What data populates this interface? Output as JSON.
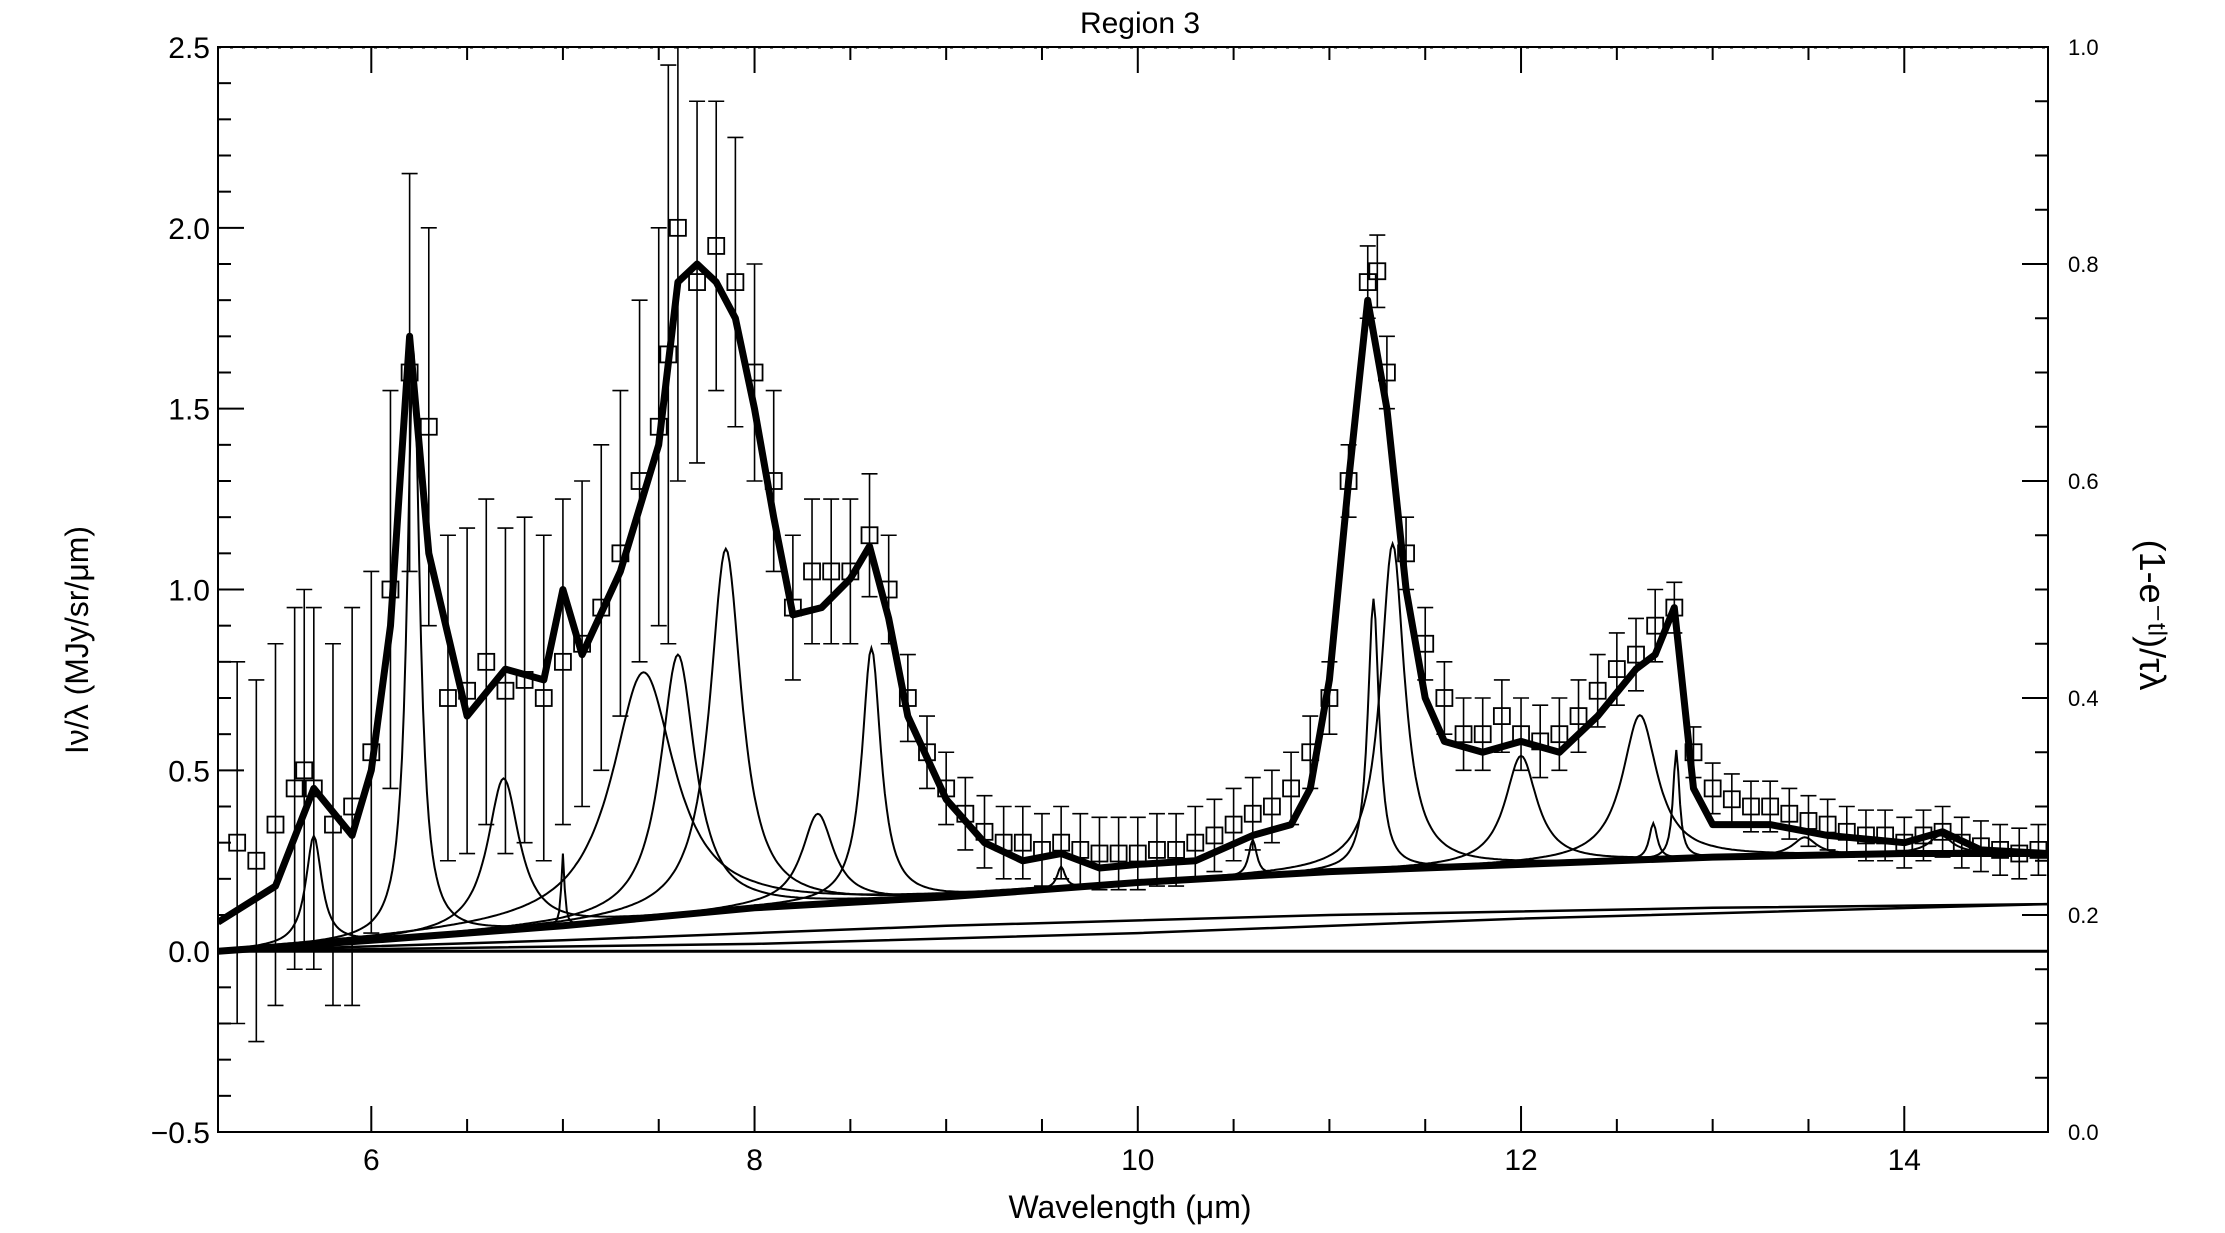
{
  "chart_data": {
    "type": "line",
    "title": "Region 3",
    "xlabel": "Wavelength (μm)",
    "ylabel": "Iν/λ (MJy/sr/μm)",
    "y2label": "(1-e⁻ᵗˡ)/τλ",
    "xlim": [
      5.2,
      14.75
    ],
    "ylim": [
      -0.5,
      2.5
    ],
    "y2lim": [
      0.0,
      1.0
    ],
    "grid": false,
    "xticks": [
      "6",
      "8",
      "10",
      "12",
      "14"
    ],
    "yticks": [
      "−0.5",
      "0.0",
      "0.5",
      "1.0",
      "1.5",
      "2.0",
      "2.5"
    ],
    "y2ticks": [
      "0.0",
      "0.2",
      "0.4",
      "0.6",
      "0.8",
      "1.0"
    ],
    "series": [
      {
        "name": "",
        "style": "data-with-errors",
        "x": [
          5.3,
          5.4,
          5.5,
          5.6,
          5.65,
          5.7,
          5.8,
          5.9,
          6.0,
          6.1,
          6.2,
          6.3,
          6.4,
          6.5,
          6.6,
          6.7,
          6.8,
          6.9,
          7.0,
          7.1,
          7.2,
          7.3,
          7.4,
          7.5,
          7.55,
          7.6,
          7.7,
          7.8,
          7.9,
          8.0,
          8.1,
          8.2,
          8.3,
          8.4,
          8.5,
          8.6,
          8.7,
          8.8,
          8.9,
          9.0,
          9.1,
          9.2,
          9.3,
          9.4,
          9.5,
          9.6,
          9.7,
          9.8,
          9.9,
          10.0,
          10.1,
          10.2,
          10.3,
          10.4,
          10.5,
          10.6,
          10.7,
          10.8,
          10.9,
          11.0,
          11.1,
          11.2,
          11.25,
          11.3,
          11.4,
          11.5,
          11.6,
          11.7,
          11.8,
          11.9,
          12.0,
          12.1,
          12.2,
          12.3,
          12.4,
          12.5,
          12.6,
          12.7,
          12.8,
          12.9,
          13.0,
          13.1,
          13.2,
          13.3,
          13.4,
          13.5,
          13.6,
          13.7,
          13.8,
          13.9,
          14.0,
          14.1,
          14.2,
          14.3,
          14.4,
          14.5,
          14.6,
          14.7
        ],
        "y": [
          0.3,
          0.25,
          0.35,
          0.45,
          0.5,
          0.45,
          0.35,
          0.4,
          0.55,
          1.0,
          1.6,
          1.45,
          0.7,
          0.72,
          0.8,
          0.72,
          0.75,
          0.7,
          0.8,
          0.85,
          0.95,
          1.1,
          1.3,
          1.45,
          1.65,
          2.0,
          1.85,
          1.95,
          1.85,
          1.6,
          1.3,
          0.95,
          1.05,
          1.05,
          1.05,
          1.15,
          1.0,
          0.7,
          0.55,
          0.45,
          0.38,
          0.33,
          0.3,
          0.3,
          0.28,
          0.3,
          0.28,
          0.27,
          0.27,
          0.27,
          0.28,
          0.28,
          0.3,
          0.32,
          0.35,
          0.38,
          0.4,
          0.45,
          0.55,
          0.7,
          1.3,
          1.85,
          1.88,
          1.6,
          1.1,
          0.85,
          0.7,
          0.6,
          0.6,
          0.65,
          0.6,
          0.58,
          0.6,
          0.65,
          0.72,
          0.78,
          0.82,
          0.9,
          0.95,
          0.55,
          0.45,
          0.42,
          0.4,
          0.4,
          0.38,
          0.36,
          0.35,
          0.33,
          0.32,
          0.32,
          0.3,
          0.32,
          0.33,
          0.3,
          0.29,
          0.28,
          0.27,
          0.28
        ],
        "err": [
          0.5,
          0.5,
          0.5,
          0.5,
          0.5,
          0.5,
          0.5,
          0.55,
          0.5,
          0.55,
          0.55,
          0.55,
          0.45,
          0.45,
          0.45,
          0.45,
          0.45,
          0.45,
          0.45,
          0.45,
          0.45,
          0.45,
          0.5,
          0.55,
          0.8,
          0.7,
          0.5,
          0.4,
          0.4,
          0.3,
          0.25,
          0.2,
          0.2,
          0.2,
          0.2,
          0.17,
          0.15,
          0.12,
          0.1,
          0.1,
          0.1,
          0.1,
          0.1,
          0.1,
          0.1,
          0.1,
          0.1,
          0.1,
          0.1,
          0.1,
          0.1,
          0.1,
          0.1,
          0.1,
          0.1,
          0.1,
          0.1,
          0.1,
          0.1,
          0.1,
          0.1,
          0.1,
          0.1,
          0.1,
          0.1,
          0.1,
          0.1,
          0.1,
          0.1,
          0.1,
          0.1,
          0.1,
          0.1,
          0.1,
          0.1,
          0.1,
          0.1,
          0.1,
          0.07,
          0.07,
          0.07,
          0.07,
          0.07,
          0.07,
          0.07,
          0.07,
          0.07,
          0.07,
          0.07,
          0.07,
          0.07,
          0.07,
          0.07,
          0.07,
          0.07,
          0.07,
          0.07,
          0.07
        ]
      },
      {
        "name": "",
        "style": "total-fit",
        "x": [
          5.2,
          5.5,
          5.7,
          5.9,
          6.0,
          6.1,
          6.2,
          6.3,
          6.5,
          6.7,
          6.9,
          7.0,
          7.1,
          7.3,
          7.5,
          7.6,
          7.7,
          7.8,
          7.9,
          8.0,
          8.1,
          8.2,
          8.35,
          8.5,
          8.6,
          8.7,
          8.8,
          9.0,
          9.2,
          9.4,
          9.6,
          9.8,
          10.0,
          10.3,
          10.6,
          10.8,
          10.9,
          11.0,
          11.1,
          11.2,
          11.3,
          11.4,
          11.5,
          11.6,
          11.8,
          12.0,
          12.2,
          12.4,
          12.6,
          12.7,
          12.8,
          12.9,
          13.0,
          13.3,
          13.6,
          14.0,
          14.2,
          14.4,
          14.75
        ],
        "y": [
          0.08,
          0.18,
          0.45,
          0.32,
          0.5,
          0.9,
          1.7,
          1.1,
          0.65,
          0.78,
          0.75,
          1.0,
          0.82,
          1.05,
          1.4,
          1.85,
          1.9,
          1.85,
          1.75,
          1.5,
          1.2,
          0.93,
          0.95,
          1.03,
          1.12,
          0.92,
          0.65,
          0.42,
          0.3,
          0.25,
          0.27,
          0.23,
          0.24,
          0.25,
          0.32,
          0.35,
          0.45,
          0.75,
          1.3,
          1.8,
          1.5,
          1.0,
          0.7,
          0.58,
          0.55,
          0.58,
          0.55,
          0.65,
          0.78,
          0.82,
          0.95,
          0.45,
          0.35,
          0.35,
          0.32,
          0.3,
          0.33,
          0.28,
          0.27
        ]
      },
      {
        "name": "",
        "style": "continuum",
        "x": [
          5.2,
          6.0,
          7.0,
          8.0,
          9.0,
          10.0,
          11.0,
          12.0,
          13.0,
          14.0,
          14.75
        ],
        "y": [
          0.0,
          0.03,
          0.07,
          0.12,
          0.15,
          0.19,
          0.22,
          0.24,
          0.26,
          0.27,
          0.27
        ]
      },
      {
        "name": "",
        "style": "continuum-component",
        "x": [
          5.2,
          7.0,
          9.0,
          11.0,
          13.0,
          14.75
        ],
        "y": [
          0.0,
          0.03,
          0.07,
          0.1,
          0.12,
          0.13
        ]
      },
      {
        "name": "",
        "style": "continuum-component",
        "x": [
          5.2,
          8.0,
          10.0,
          12.0,
          14.75
        ],
        "y": [
          0.0,
          0.02,
          0.05,
          0.09,
          0.13
        ]
      },
      {
        "name": "",
        "style": "zero-line",
        "x": [
          5.2,
          14.75
        ],
        "y": [
          0.0,
          0.0
        ]
      },
      {
        "name": "",
        "style": "extinction",
        "axis": "right",
        "x": [
          5.2,
          14.75
        ],
        "y": [
          1.0,
          1.0
        ]
      }
    ],
    "features": [
      {
        "center": 5.7,
        "height": 0.3,
        "width": 0.1
      },
      {
        "center": 6.22,
        "height": 1.62,
        "width": 0.08
      },
      {
        "center": 6.69,
        "height": 0.42,
        "width": 0.2
      },
      {
        "center": 7.0,
        "height": 0.2,
        "width": 0.02
      },
      {
        "center": 7.42,
        "height": 0.68,
        "width": 0.4
      },
      {
        "center": 7.6,
        "height": 0.72,
        "width": 0.22
      },
      {
        "center": 7.85,
        "height": 1.0,
        "width": 0.2
      },
      {
        "center": 8.33,
        "height": 0.25,
        "width": 0.2
      },
      {
        "center": 8.61,
        "height": 0.7,
        "width": 0.12
      },
      {
        "center": 9.6,
        "height": 0.06,
        "width": 0.05
      },
      {
        "center": 10.6,
        "height": 0.1,
        "width": 0.05
      },
      {
        "center": 11.23,
        "height": 0.75,
        "width": 0.07
      },
      {
        "center": 11.33,
        "height": 0.9,
        "width": 0.15
      },
      {
        "center": 12.0,
        "height": 0.3,
        "width": 0.2
      },
      {
        "center": 12.62,
        "height": 0.4,
        "width": 0.22
      },
      {
        "center": 12.69,
        "height": 0.1,
        "width": 0.05
      },
      {
        "center": 12.81,
        "height": 0.3,
        "width": 0.04
      },
      {
        "center": 13.48,
        "height": 0.05,
        "width": 0.15
      },
      {
        "center": 14.19,
        "height": 0.05,
        "width": 0.15
      }
    ]
  }
}
